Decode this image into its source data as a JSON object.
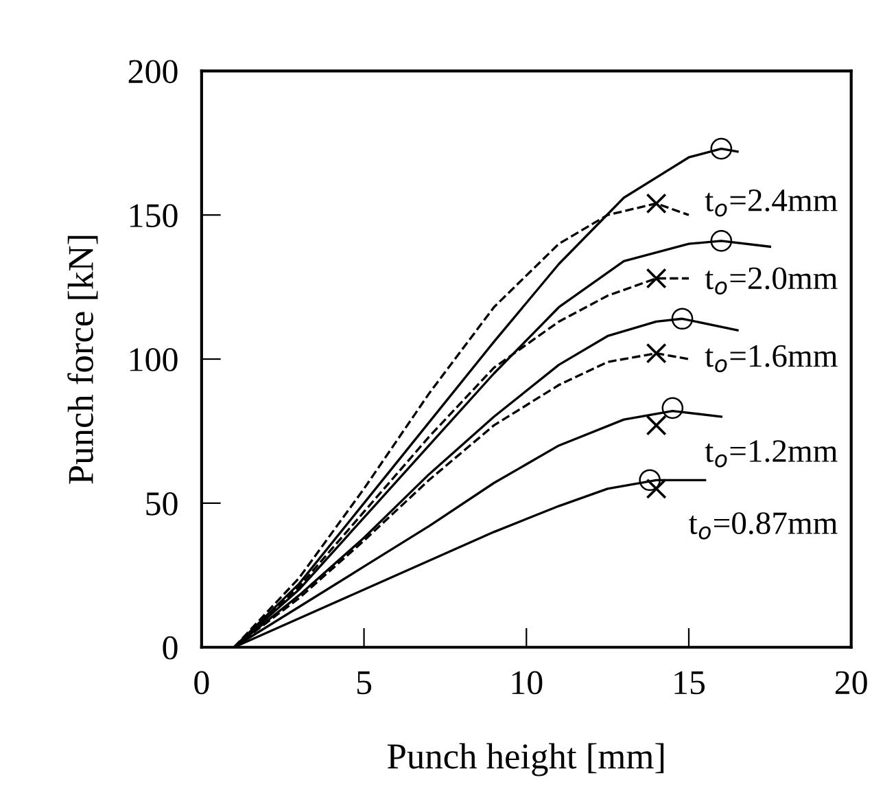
{
  "chart_data": {
    "type": "line",
    "xlabel": "Punch height [mm]",
    "ylabel": "Punch force [kN]",
    "xlim": [
      0,
      20
    ],
    "ylim": [
      0,
      200
    ],
    "xticks": [
      0,
      5,
      10,
      15,
      20
    ],
    "yticks": [
      0,
      50,
      100,
      150,
      200
    ],
    "grid": false,
    "legend": false,
    "series": [
      {
        "color": "#000000",
        "line_style": "solid",
        "x": [
          1,
          3,
          5,
          7,
          9,
          11,
          13,
          15,
          16,
          16.5
        ],
        "values": [
          0,
          22,
          50,
          78,
          106,
          133,
          156,
          170,
          173,
          172
        ]
      },
      {
        "color": "#000000",
        "line_style": "dashed",
        "x": [
          1,
          3,
          5,
          7,
          9,
          11,
          12.5,
          14,
          15
        ],
        "values": [
          0,
          24,
          55,
          88,
          118,
          140,
          150,
          154,
          150
        ]
      },
      {
        "color": "#000000",
        "line_style": "solid",
        "x": [
          1,
          3,
          5,
          7,
          9,
          11,
          13,
          15,
          16,
          17.5
        ],
        "values": [
          0,
          20,
          45,
          70,
          95,
          118,
          134,
          140,
          141,
          139
        ]
      },
      {
        "color": "#000000",
        "line_style": "dashed",
        "x": [
          1,
          3,
          5,
          7,
          9,
          11,
          12.5,
          14,
          15
        ],
        "values": [
          0,
          21,
          47,
          73,
          97,
          113,
          122,
          128,
          128
        ]
      },
      {
        "color": "#000000",
        "line_style": "solid",
        "x": [
          1,
          3,
          5,
          7,
          9,
          11,
          12.5,
          14,
          14.8,
          16.5
        ],
        "values": [
          0,
          18,
          38,
          60,
          80,
          98,
          108,
          113,
          114,
          110
        ]
      },
      {
        "color": "#000000",
        "line_style": "dashed",
        "x": [
          1,
          3,
          5,
          7,
          9,
          11,
          12.5,
          14,
          15
        ],
        "values": [
          0,
          17,
          37,
          58,
          77,
          91,
          99,
          102,
          100
        ]
      },
      {
        "color": "#000000",
        "line_style": "solid",
        "x": [
          1,
          3,
          5,
          7,
          9,
          11,
          13,
          14.5,
          16
        ],
        "values": [
          0,
          14,
          28,
          42,
          57,
          70,
          79,
          82,
          80
        ]
      },
      {
        "color": "#000000",
        "line_style": "solid",
        "x": [
          1,
          3,
          5,
          7,
          9,
          11,
          12.5,
          14,
          15.5
        ],
        "values": [
          0,
          10,
          20,
          30,
          40,
          49,
          55,
          58,
          58
        ]
      },
      {
        "type": "scatter",
        "marker": "circle",
        "color": "#000000",
        "x": [
          16,
          16,
          14.8,
          14.5,
          13.8
        ],
        "values": [
          173,
          141,
          114,
          83,
          58
        ]
      },
      {
        "type": "scatter",
        "marker": "cross",
        "color": "#000000",
        "x": [
          14,
          14,
          14,
          14,
          14
        ],
        "values": [
          154,
          128,
          102,
          77,
          55
        ]
      }
    ],
    "annotations": [
      "t$_{o}$=2.4mm",
      "t$_{o}$=2.0mm",
      "t$_{o}$=1.6mm",
      "t$_{o}$=1.2mm",
      "t$_{o}$=0.87mm"
    ]
  }
}
